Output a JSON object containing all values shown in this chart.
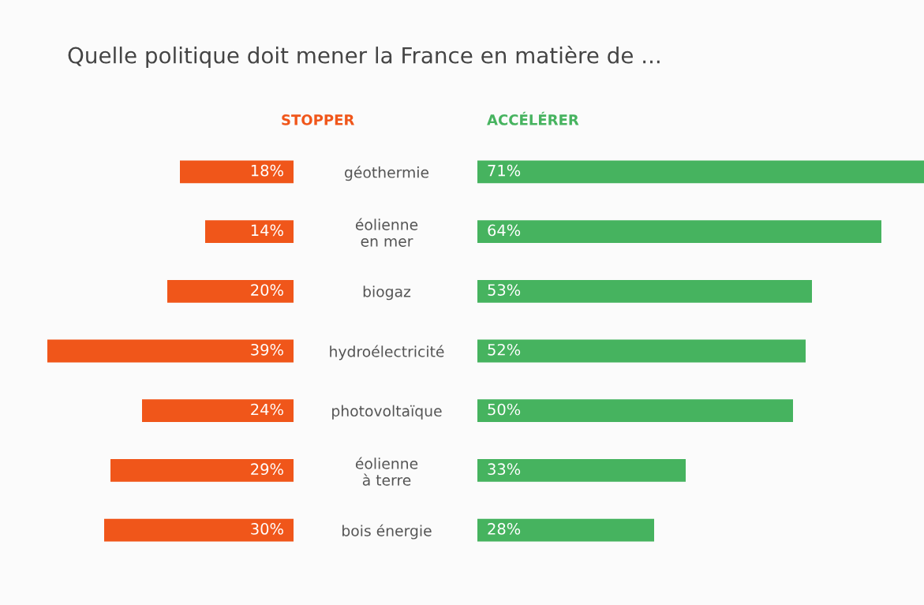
{
  "chart_data": [
    {
      "type": "bar",
      "orientation": "horizontal",
      "title": "Quelle politique doit mener la France en matière de ...",
      "categories": [
        "géothermie",
        "éolienne\nen mer",
        "biogaz",
        "hydroélectricité",
        "photovoltaïque",
        "éolienne\nà terre",
        "bois énergie"
      ],
      "tick_labels": "y",
      "legend": false,
      "grid": false,
      "series": [
        {
          "name": "STOPPER",
          "color": "#f0561a",
          "values": [
            18,
            14,
            20,
            39,
            24,
            29,
            30
          ],
          "value_labels": [
            "18%",
            "14%",
            "20%",
            "39%",
            "24%",
            "29%",
            "30%"
          ]
        }
      ]
    },
    {
      "type": "bar",
      "orientation": "horizontal",
      "categories": [
        null,
        null,
        null,
        null,
        null,
        null,
        null
      ],
      "tick_labels": false,
      "legend": false,
      "grid": false,
      "series": [
        {
          "name": "ACCÉLÉRER",
          "color": "#46b35f",
          "values": [
            71,
            64,
            53,
            52,
            50,
            33,
            28
          ],
          "value_labels": [
            "71%",
            "64%",
            "53%",
            "52%",
            "50%",
            "33%",
            "28%"
          ]
        }
      ]
    }
  ]
}
